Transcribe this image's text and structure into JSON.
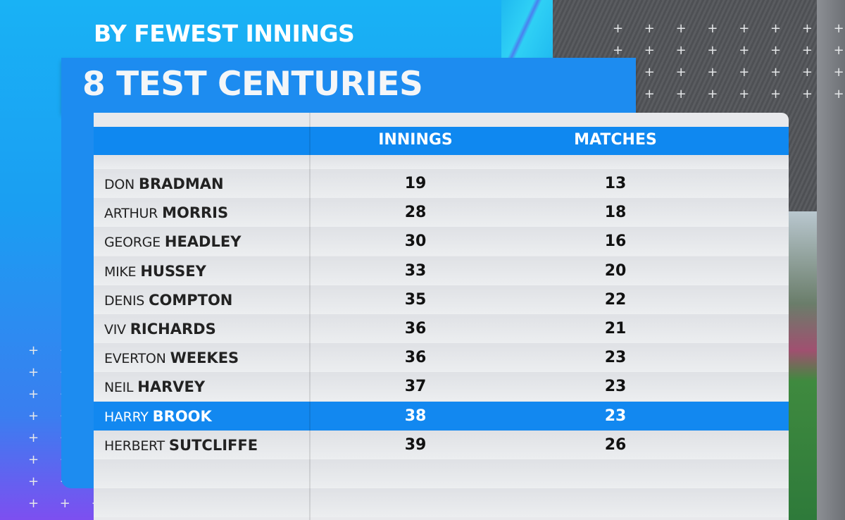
{
  "graphic": {
    "subtitle": "BY FEWEST INNINGS",
    "title": "8 TEST CENTURIES",
    "accent_color": "#1d8cf0",
    "highlight_color": "#1288f0"
  },
  "table": {
    "columns": [
      "",
      "INNINGS",
      "MATCHES"
    ],
    "rows": [
      {
        "first": "DON",
        "last": "BRADMAN",
        "innings": "19",
        "matches": "13"
      },
      {
        "first": "ARTHUR",
        "last": "MORRIS",
        "innings": "28",
        "matches": "18"
      },
      {
        "first": "GEORGE",
        "last": "HEADLEY",
        "innings": "30",
        "matches": "16"
      },
      {
        "first": "MIKE",
        "last": "HUSSEY",
        "innings": "33",
        "matches": "20"
      },
      {
        "first": "DENIS",
        "last": "COMPTON",
        "innings": "35",
        "matches": "22"
      },
      {
        "first": "VIV",
        "last": "RICHARDS",
        "innings": "36",
        "matches": "21"
      },
      {
        "first": "EVERTON",
        "last": "WEEKES",
        "innings": "36",
        "matches": "23"
      },
      {
        "first": "NEIL",
        "last": "HARVEY",
        "innings": "37",
        "matches": "23"
      },
      {
        "first": "HARRY",
        "last": "BROOK",
        "innings": "38",
        "matches": "23",
        "highlighted": true
      },
      {
        "first": "HERBERT",
        "last": "SUTCLIFFE",
        "innings": "39",
        "matches": "26"
      }
    ]
  }
}
